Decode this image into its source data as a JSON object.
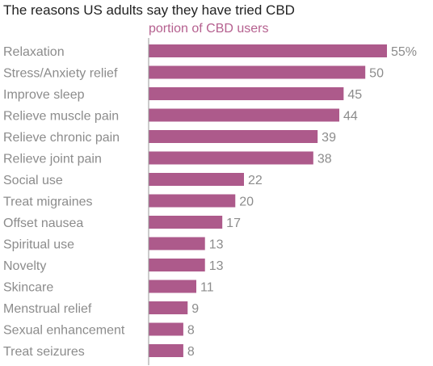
{
  "chart_data": {
    "type": "bar",
    "orientation": "horizontal",
    "title": "The reasons US adults say they have tried CBD",
    "subtitle": "portion of CBD users",
    "categories": [
      "Relaxation",
      "Stress/Anxiety relief",
      "Improve sleep",
      "Relieve muscle pain",
      "Relieve chronic pain",
      "Relieve joint pain",
      "Social use",
      "Treat migraines",
      "Offset nausea",
      "Spiritual use",
      "Novelty",
      "Skincare",
      "Menstrual relief",
      "Sexual enhancement",
      "Treat seizures"
    ],
    "values": [
      55,
      50,
      45,
      44,
      39,
      38,
      22,
      20,
      17,
      13,
      13,
      11,
      9,
      8,
      8
    ],
    "value_labels": [
      "55%",
      "50",
      "45",
      "44",
      "39",
      "38",
      "22",
      "20",
      "17",
      "13",
      "13",
      "11",
      "9",
      "8",
      "8"
    ],
    "xlim": [
      0,
      55
    ],
    "grid": false,
    "bar_color": "#ad5a8b",
    "subtitle_color": "#b5608f",
    "label_color": "#8c8c8c",
    "axis_color": "#999999"
  }
}
